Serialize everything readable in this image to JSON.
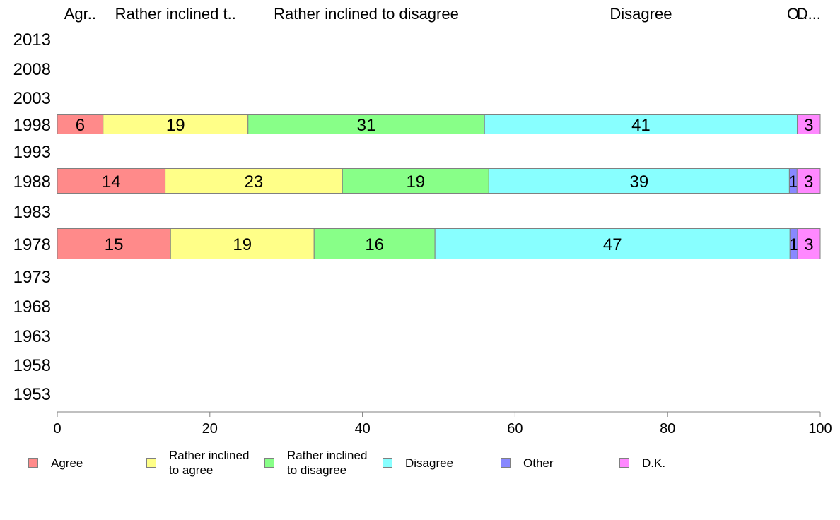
{
  "chart_data": {
    "type": "bar",
    "orientation": "horizontal",
    "stacked": true,
    "categories": [
      "2013",
      "2008",
      "2003",
      "1998",
      "1993",
      "1988",
      "1983",
      "1978",
      "1973",
      "1968",
      "1963",
      "1958",
      "1953"
    ],
    "series": [
      {
        "name": "Agree",
        "short_label": "Agr..",
        "color": "#ff8a8a",
        "values": [
          null,
          null,
          null,
          6,
          null,
          14,
          null,
          15,
          null,
          null,
          null,
          null,
          null
        ]
      },
      {
        "name": "Rather inclined\nto agree",
        "short_label": "Rather inclined t..",
        "color": "#ffff88",
        "values": [
          null,
          null,
          null,
          19,
          null,
          23,
          null,
          19,
          null,
          null,
          null,
          null,
          null
        ]
      },
      {
        "name": "Rather inclined\nto disagree",
        "short_label": "Rather inclined to disagree",
        "color": "#88ff88",
        "values": [
          null,
          null,
          null,
          31,
          null,
          19,
          null,
          16,
          null,
          null,
          null,
          null,
          null
        ]
      },
      {
        "name": "Disagree",
        "short_label": "Disagree",
        "color": "#88ffff",
        "values": [
          null,
          null,
          null,
          41,
          null,
          39,
          null,
          47,
          null,
          null,
          null,
          null,
          null
        ]
      },
      {
        "name": "Other",
        "short_label": "O..",
        "color": "#8888ff",
        "values": [
          null,
          null,
          null,
          0,
          null,
          1,
          null,
          1,
          null,
          null,
          null,
          null,
          null
        ]
      },
      {
        "name": "D.K.",
        "short_label": "D...",
        "color": "#ff88ff",
        "values": [
          null,
          null,
          null,
          3,
          null,
          3,
          null,
          3,
          null,
          null,
          null,
          null,
          null
        ]
      }
    ],
    "xlim": [
      0,
      100
    ],
    "x_ticks": [
      "0",
      "20",
      "40",
      "60",
      "80",
      "100"
    ],
    "grid": false,
    "legend_position": "bottom"
  }
}
